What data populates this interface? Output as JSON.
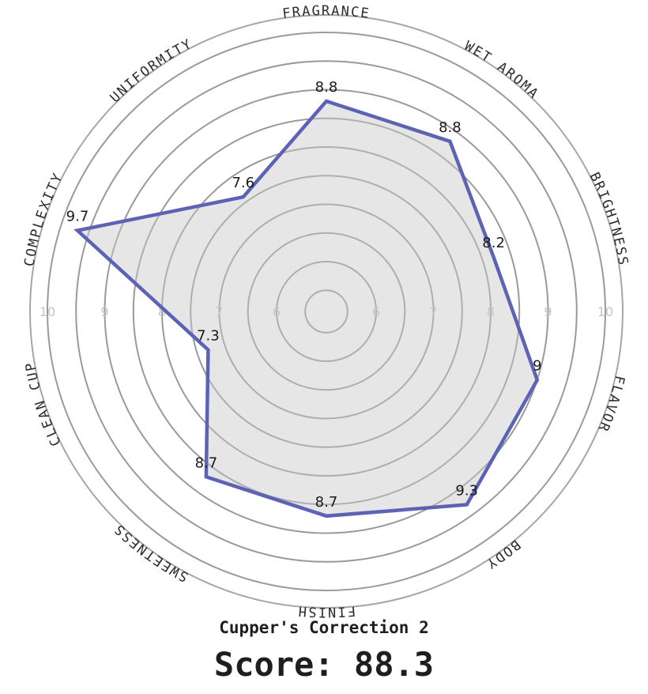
{
  "chart_data": {
    "type": "radar",
    "title": "",
    "categories": [
      "FRAGRANCE",
      "WET AROMA",
      "BRIGHTNESS",
      "FLAVOR",
      "BODY",
      "FINISH",
      "SWEETNESS",
      "CLEAN CUP",
      "COMPLEXITY",
      "UNIFORMITY"
    ],
    "series": [
      {
        "values": [
          8.8,
          8.8,
          8.2,
          9,
          9.3,
          8.7,
          8.7,
          7.3,
          9.7,
          7.6
        ],
        "value_labels": [
          "8.8",
          "8.8",
          "8.2",
          "9",
          "9.3",
          "8.7",
          "8.7",
          "7.3",
          "9.7",
          "7.6"
        ]
      }
    ],
    "rlim": [
      5,
      10
    ],
    "rticks": [
      6,
      7,
      8,
      9,
      10
    ],
    "rtick_labels": [
      "6",
      "7",
      "8",
      "9",
      "10"
    ],
    "grid": true,
    "colors": {
      "line": "#5c63b5",
      "fill": "#d6d6d6",
      "grid": "#9a9a9a"
    }
  },
  "caption": "Cupper's Correction 2",
  "score": {
    "label": "Score:",
    "value": "88.3"
  }
}
